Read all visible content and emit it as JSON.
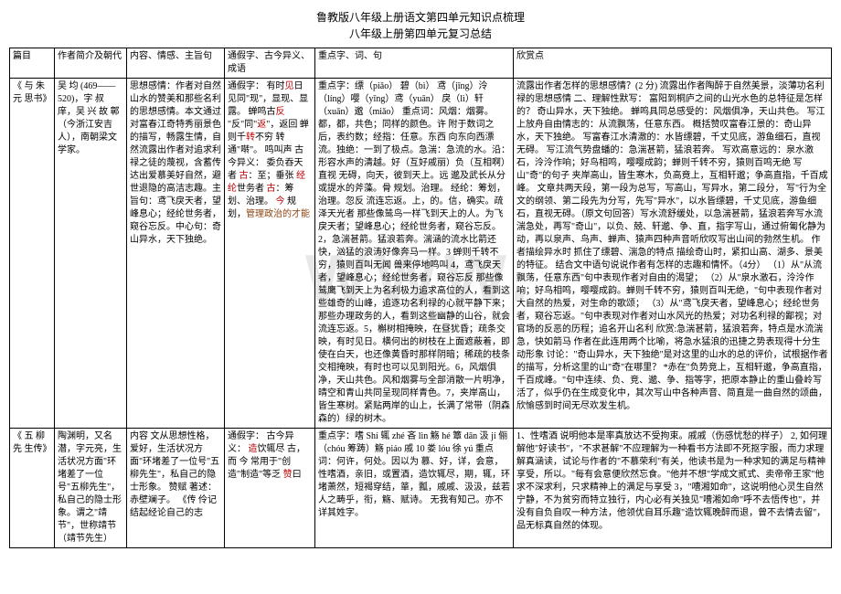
{
  "header": {
    "title1": "鲁教版八年级上册语文第四单元知识点梳理",
    "title2": "八年级上册第四单元复习总结"
  },
  "columns": {
    "c1": "篇目",
    "c2": "作者简介及朝代",
    "c3": "内容、情感、主旨句",
    "c4": "通假字、古今异义、成语",
    "c5": "重点字、词、句",
    "c6": "欣赏点"
  },
  "row1": {
    "title": "《 与 朱 元 思书》",
    "author": "吴    均 (469——520)，字 叔 庠，吴 兴 故 鄣（今浙江安吉人），南朝梁文学家。",
    "content": "思想感情：作者对自然山水的赞美和那些名利的思想感情。本文通过对富春江奇特秀丽景色的描写，畅露生情，自然流露出作者对追求利禄之徒的蔑视，含蓄传达出爱慕美好自然，避世退隐的高洁志趣。主旨句：鸢飞戾天者，望峰息心；经纶世务者，窥谷忘反。中心句：奇山异水，天下独绝。",
    "tongjia_pre": "通假字：\n有时",
    "tongjia_red1": "见",
    "tongjia_mid1": "日\n见同\"现\"，显现、显露。\n蝉鸣古",
    "tongjia_red2": "反",
    "tongjia_mid2": "\n\"反\"同\"",
    "tongjia_red3": "返",
    "tongjia_mid3": "\"，返回\n蝉则千",
    "tongjia_red4": "转",
    "tongjia_mid4": "不穷\n转通\"啭\"。\n鸣叫声\n古今异义：\n委负吞天者\n",
    "tongjia_red5": "古",
    "tongjia_mid5": "：至；垂张\n",
    "tongjia_red6": "经纶",
    "tongjia_mid6": "世务者\n",
    "tongjia_red7": "古",
    "tongjia_mid7": "：筹划、治理。\n",
    "tongjia_red8": "今",
    "tongjia_mid8": " 规划，",
    "tongjia_red9": "管理政治的才能",
    "zhongdian": "重点字：缥（piǎo）  碧（bì）  鸢（jīng）泠（líng）嘤（yīng）鸢（yuān）\n戾（lì）轩（xuān）邈（miǎo）\n重点词：风烟：烟雾。都，都，共色；同样的颜色。许 附于数词之后，表约数；经指：任意。东西 向东向西漂流。独绝：一到了极点。急湍：急流的水。沿：形容水声的清越。好（互好戚丽）负（互相啊）直视 无碍，向天，彼到天上。远 邈及武长从分或提水的斧藻。骨 规划。治理。\n经纶：筹划，治理。忽反 流连忘返。上，的。信，确实。疏泽天光者 那些像鸶鸟一样飞到天上的人。为飞戾天者；望峰息心；经纶世务者，窥谷忘反。2，急湍甚箭。猛浪若奔。湍涵的流水比箭还快，汹猛的浪涛好像奔马一样。3 蝉则千转不穷，猿则百叫无闻 兽来停地鸣叫 4，鸢飞戾天者，望峰息心；经纶世务者，窥谷忘反 那些像鸶鹰飞到天上为名利极力追求高位的人，看到这些雄奇的山峰，追逐功名利禄的心就平静下来；那些办理政务的人，看到这些幽静的山谷，就会流连忘返。5，槲树相掩映，在昼犹昏；疏条交映，有时见日。横何出的树枝在上面遮蔽着，即使在白天，也还像黄昏时那样阴暗；稀疏的枝条交相掩映，有时也可以见到阳光。6，风烟俱净，天山共色。风和烟雾与全部消散一片明净，晴空和青山共同呈现同样青色。7，夹岸高山，皆生寒树。紧贴两岸的山上，长满了常带（阴森森的）绿的树木。",
    "xinshang": "流露出作者怎样的思想感情？(2 分) 流露出作者陶醉于自然美景，淡薄功名利禄的思想感情\n二、理解性默写：\n富阳到桐庐之间的山光水色的总特征是怎样的？\n奇山异水，天下独绝。\n蝉鸣具同总感受的：风烟俱净，天山共色。\n写江上放舟自由情志的：从流飘荡，任意东西。\n概括赞叹富春江景的：奇山异水，天下独绝。\n写富春江水清澈的：水皆缥碧，千丈见底，游鱼细石，直视无碍。\n写江流气势盘蟠的：急湍甚箭，猛浪若奔。\n写欢高意远的：泉水激石，泠泠作响；好鸟相鸣，嘤嘤成韵；蝉则千转不穷，猿则百鸣无绝\n写山\"奇\"的句子 夹岸高山，皆生寒木，负高竟上，互相轩邈；争高直指，千百成峰。\n文章共两天段，第一段为总写，写高山，写异水，第二段分，\n写\"行为全文的纲领、第二段先为分写，先写\"异水\"，以水皆缥碧，千丈见底，游鱼细石，直视无碍。（原文句回答）写水流舒缓处，以急湍甚箭，猛浪若奔写水流湍急处，再写\"奇山\"，以负、兢、轩邈、争、直，指字写山，通过俯匍化静为动，再以泉声、鸟声、蝉声、猿声四种声音听欣叹写出山间的勃然生机。\n作者描绘异水时 抓住了缥碧、湍急的特点 描绘奇山时，紧扣山高、湖多、景美的特征。\n结合文中语句说说作者有怎样的志趣和情怀。（4分）\n   （1）从\"从流飘荡，任意东西\"句中表现作者对自由的渴望；\n   （2）从\"泉水激石，泠泠作响；好鸟相鸣，嘤嘤成韵。蝉则千转不穷，猿则百叫无绝，\"句中表现作者对大自然的热爱，对生命的歌颂；\n   （3）从\"鸢飞戾天者，望峰息心；经纶世务者，窥谷忘返。\"句中表现对作者对山水风光的热爱；对功名利禄的鄙视；对官场的反恶的历程；追名开山名利\n欣赏:急湍甚箭，猛浪若奔，特点是水流湍急，快如箭马 作者在此连用两个比喻，将急水猛浪的迅捷之势表现得十分生动形象\n讨论：\"奇山异水，天下独绝\"是对这里的山水的总的评价，试根据作者的描写，分析这里的山\"奇\"在哪里？\n*赤在\"负势竞上，互相轩邈，争高直指，千百成峰。\"句中连续、负、竞、邈、争、指等字，把原本静止的重山叠岭写活了，似乎仍在生成变化中，其次写山中各种声音、简直是一曲自然的颂曲，欣愉感到时间无尽欢发生机。"
  },
  "row2": {
    "title": "《    五 柳 先 生传》",
    "author": "陶渊明，又名潜，字元亮，生活状况方面\"环堵差了一位号\"五柳先生\"，私自己的隐士形象。谓之\"靖节\"，世称靖节（靖节先生）",
    "content": "内容 文从思想性格，爱好，生活状况方面\"环堵差了一位号\"五柳先生\"，私自己的隐士形象。\n赞赋\n著述：赤壁斓子。\n《传 伶记结起经论自己的志",
    "tongjia_pre": "通假字：\n古今异义：\n",
    "tongjia_r2_red1": "造",
    "tongjia_r2_mid1": "饮辄尽\n古，而\n今 常用于\"创造\"制造\"等乏\n",
    "tongjia_r2_red2": "赞",
    "tongjia_r2_mid2": "曰",
    "zhongdian": "重点字：嗜 Shí   辄 zhé   吝 lìn   觞 hé 簟 dān 汲 jí   俪（chóu 筹踌）觞 piáo 戚 10     娄 lóu   徐 yú\n重点词：何许，何处。因以为 慕、好，详，会意，性嗜酒，亲旧，或置酒，造饮辄尽，期，辄，环堵萧然，短褐穿结，箪，瓢，戚戚、汲汲，兹若人之畴乎，衔，觞、赋诗。\n无我有知己。亦不详其姓字。",
    "xinshang": "1、性嗜酒 说明他本是率真放达不受拘束。戚戚（伤感忧愁的样子）\n2, 如何理解他\"好读书\"，\"不求甚解\"不应理解为一种看书方法即不死抠字服，而力求理解真涵读，试论与作者的\"不慕荣利\"有关，他读书是为一种求知的满足与精神享受，所以。\"每有会意便欣然忘食。\"他并不想\"学成文贰式、卖帝帝王家\"他求不深求利，只求精神上的满足与享受\n3，\"嘈湘如命\"，这说明他心灵生自然宁静，不为贫穷而特立独行，内心必有关独见\"嘈湘如命\"呼不去悟传也\"，并没有自负自叹一种方法，他领优自耳乐趣\"造饮辄晚醉而退，曾不去情去留\"，品无标真自然的体现。"
  }
}
